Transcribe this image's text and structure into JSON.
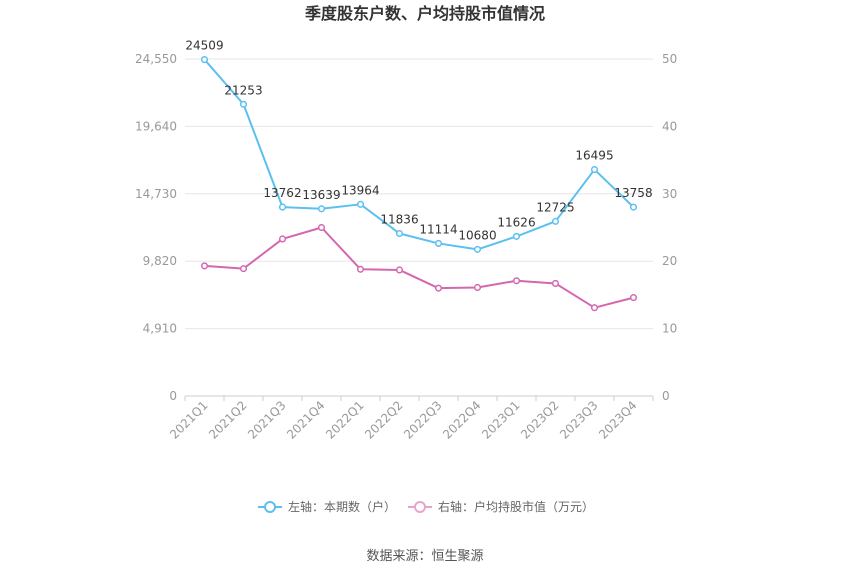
{
  "chart_data": {
    "type": "line",
    "title": "季度股东户数、户均持股市值情况",
    "categories": [
      "2021Q1",
      "2021Q2",
      "2021Q3",
      "2021Q4",
      "2022Q1",
      "2022Q2",
      "2022Q3",
      "2022Q4",
      "2023Q1",
      "2023Q2",
      "2023Q3",
      "2023Q4"
    ],
    "left_axis": {
      "ticks": [
        "0",
        "4,910",
        "9,820",
        "14,730",
        "19,640",
        "24,550"
      ],
      "ylim": [
        0,
        24550
      ]
    },
    "right_axis": {
      "ticks": [
        "0",
        "10",
        "20",
        "30",
        "40",
        "50"
      ],
      "ylim": [
        0,
        50
      ]
    },
    "series": [
      {
        "name": "左轴：本期数（户）",
        "axis": "left",
        "color": "#5bc0f0",
        "values": [
          24509,
          21253,
          13762,
          13639,
          13964,
          11836,
          11114,
          10680,
          11626,
          12725,
          16495,
          13758
        ],
        "labels": [
          "24509",
          "21253",
          "13762",
          "13639",
          "13964",
          "11836",
          "11114",
          "10680",
          "11626",
          "12725",
          "16495",
          "13758"
        ]
      },
      {
        "name": "右轴：户均持股市值（万元）",
        "axis": "right",
        "color": "#d467b0",
        "values": [
          19.3,
          18.9,
          23.3,
          25.0,
          18.8,
          18.7,
          16.0,
          16.1,
          17.1,
          16.7,
          13.1,
          14.6
        ]
      }
    ],
    "grid": true,
    "legend_position": "bottom"
  },
  "source": "数据来源：恒生聚源"
}
